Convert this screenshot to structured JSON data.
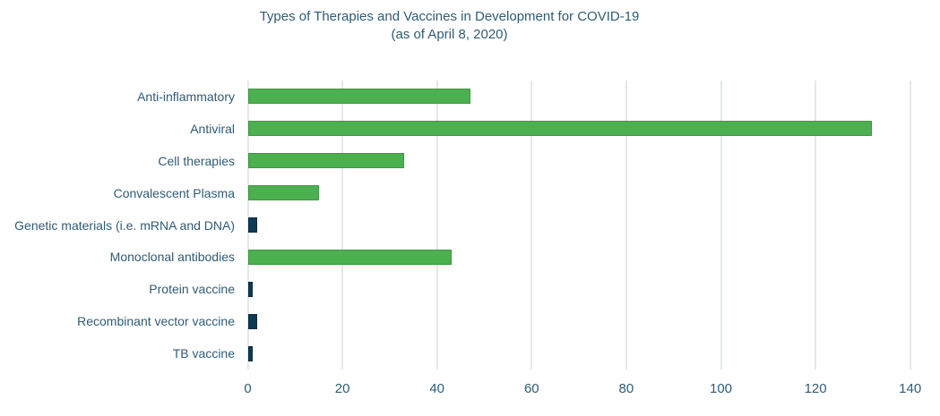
{
  "title": {
    "line1": "Types of Therapies and Vaccines in Development for COVID-19",
    "line2": "(as of April 8, 2020)"
  },
  "colors": {
    "therapy_fill": "#4caf50",
    "therapy_border": "#3f9743",
    "vaccine_fill": "#0e3a53",
    "vaccine_border": "#092c3f",
    "gridline": "#e4e8ea",
    "text": "#2f5b76",
    "background": "#ffffff"
  },
  "chart_data": {
    "type": "bar",
    "orientation": "horizontal",
    "title": "Types of Therapies and Vaccines in Development for COVID-19",
    "subtitle": "(as of April 8, 2020)",
    "categories": [
      "Anti-inflammatory",
      "Antiviral",
      "Cell therapies",
      "Convalescent Plasma",
      "Genetic materials (i.e. mRNA and DNA)",
      "Monoclonal antibodies",
      "Protein vaccine",
      "Recombinant vector vaccine",
      "TB vaccine"
    ],
    "values": [
      47,
      132,
      33,
      15,
      2,
      43,
      1,
      2,
      1
    ],
    "bar_types": [
      "therapy",
      "therapy",
      "therapy",
      "therapy",
      "vaccine",
      "therapy",
      "vaccine",
      "vaccine",
      "vaccine"
    ],
    "xlabel": "",
    "ylabel": "",
    "xlim": [
      0,
      140
    ],
    "x_ticks": [
      0,
      20,
      40,
      60,
      80,
      100,
      120,
      140
    ],
    "grid": "vertical-only",
    "legend": "none"
  }
}
